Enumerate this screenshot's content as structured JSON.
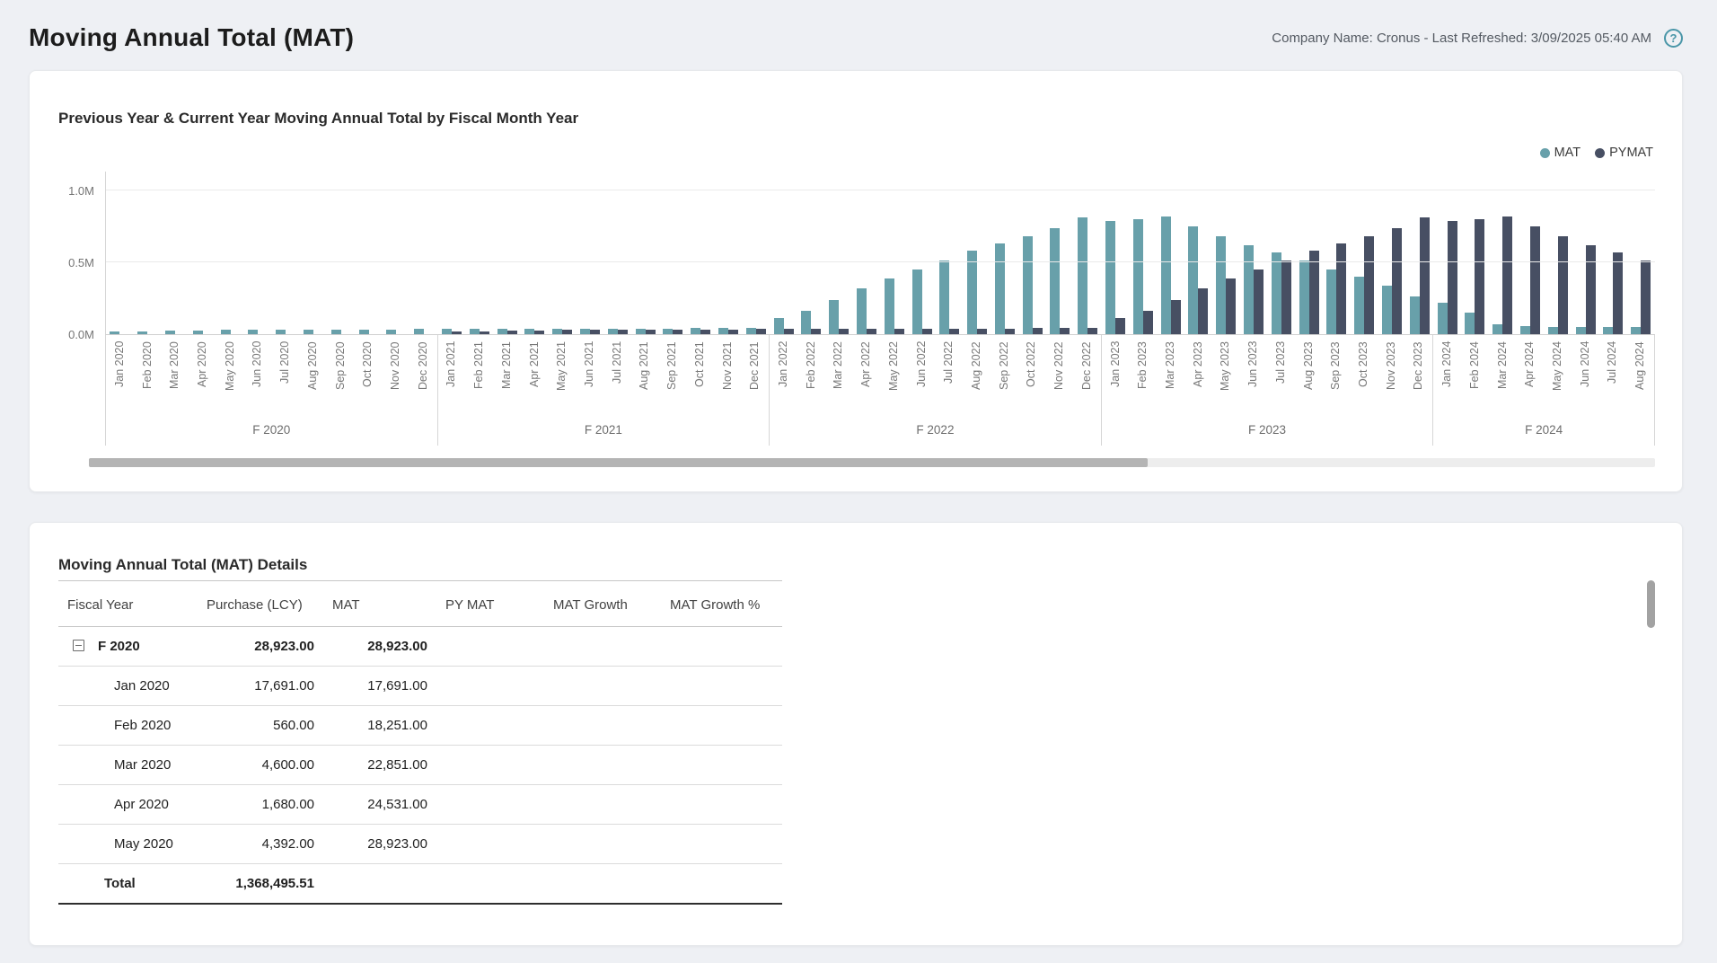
{
  "page": {
    "title": "Moving Annual Total (MAT)",
    "company_info": "Company Name: Cronus - Last Refreshed: 3/09/2025 05:40 AM"
  },
  "icons": {
    "help": "?"
  },
  "chart_card": {
    "title": "Previous Year & Current Year Moving Annual Total by Fiscal Month Year",
    "legend": [
      {
        "label": "MAT",
        "color": "#68a0aa"
      },
      {
        "label": "PYMAT",
        "color": "#474f63"
      }
    ]
  },
  "chart_data": {
    "type": "bar",
    "title": "Previous Year & Current Year Moving Annual Total by Fiscal Month Year",
    "xlabel": "Fiscal Month Year",
    "ylabel": "",
    "ylim": [
      0,
      1000000
    ],
    "y_tick_labels": [
      "0.0M",
      "0.5M",
      "1.0M"
    ],
    "grid": true,
    "legend_position": "top-right",
    "fiscal_groups": [
      {
        "label": "F 2020",
        "months": [
          "Jan 2020",
          "Feb 2020",
          "Mar 2020",
          "Apr 2020",
          "May 2020",
          "Jun 2020",
          "Jul 2020",
          "Aug 2020",
          "Sep 2020",
          "Oct 2020",
          "Nov 2020",
          "Dec 2020"
        ]
      },
      {
        "label": "F 2021",
        "months": [
          "Jan 2021",
          "Feb 2021",
          "Mar 2021",
          "Apr 2021",
          "May 2021",
          "Jun 2021",
          "Jul 2021",
          "Aug 2021",
          "Sep 2021",
          "Oct 2021",
          "Nov 2021",
          "Dec 2021"
        ]
      },
      {
        "label": "F 2022",
        "months": [
          "Jan 2022",
          "Feb 2022",
          "Mar 2022",
          "Apr 2022",
          "May 2022",
          "Jun 2022",
          "Jul 2022",
          "Aug 2022",
          "Sep 2022",
          "Oct 2022",
          "Nov 2022",
          "Dec 2022"
        ]
      },
      {
        "label": "F 2023",
        "months": [
          "Jan 2023",
          "Feb 2023",
          "Mar 2023",
          "Apr 2023",
          "May 2023",
          "Jun 2023",
          "Jul 2023",
          "Aug 2023",
          "Sep 2023",
          "Oct 2023",
          "Nov 2023",
          "Dec 2023"
        ]
      },
      {
        "label": "F 2024",
        "months": [
          "Jan 2024",
          "Feb 2024",
          "Mar 2024",
          "Apr 2024",
          "May 2024",
          "Jun 2024",
          "Jul 2024",
          "Aug 2024"
        ]
      }
    ],
    "series": [
      {
        "name": "MAT",
        "color": "#68a0aa",
        "values": [
          17691,
          18251,
          22851,
          24531,
          28923,
          30500,
          31500,
          32500,
          33000,
          33500,
          34000,
          35000,
          36000,
          36500,
          37000,
          37500,
          38000,
          38500,
          39000,
          39500,
          40000,
          41000,
          42000,
          43000,
          110000,
          165000,
          240000,
          320000,
          390000,
          450000,
          510000,
          580000,
          630000,
          680000,
          740000,
          810000,
          790000,
          800000,
          820000,
          750000,
          680000,
          620000,
          570000,
          510000,
          450000,
          400000,
          340000,
          260000,
          220000,
          150000,
          70000,
          55000,
          52000,
          50000,
          50000,
          48000
        ]
      },
      {
        "name": "PYMAT",
        "color": "#474f63",
        "values": [
          0,
          0,
          0,
          0,
          0,
          0,
          0,
          0,
          0,
          0,
          0,
          0,
          17691,
          18251,
          22851,
          24531,
          28923,
          30500,
          31500,
          32500,
          33000,
          33500,
          34000,
          35000,
          36000,
          36500,
          37000,
          37500,
          38000,
          38500,
          39000,
          39500,
          40000,
          41000,
          42000,
          43000,
          110000,
          165000,
          240000,
          320000,
          390000,
          450000,
          510000,
          580000,
          630000,
          680000,
          740000,
          810000,
          790000,
          800000,
          820000,
          750000,
          680000,
          620000,
          570000,
          510000
        ]
      }
    ]
  },
  "details_card": {
    "title": "Moving Annual Total (MAT) Details",
    "columns": [
      "Fiscal Year",
      "Purchase (LCY)",
      "MAT",
      "PY MAT",
      "MAT Growth",
      "MAT Growth %"
    ],
    "rows": [
      {
        "type": "group",
        "label": "F 2020",
        "purchase": "28,923.00",
        "mat": "28,923.00",
        "py_mat": "",
        "mat_growth": "",
        "mat_growth_pct": ""
      },
      {
        "type": "month",
        "label": "Jan 2020",
        "purchase": "17,691.00",
        "mat": "17,691.00",
        "py_mat": "",
        "mat_growth": "",
        "mat_growth_pct": ""
      },
      {
        "type": "month",
        "label": "Feb 2020",
        "purchase": "560.00",
        "mat": "18,251.00",
        "py_mat": "",
        "mat_growth": "",
        "mat_growth_pct": ""
      },
      {
        "type": "month",
        "label": "Mar 2020",
        "purchase": "4,600.00",
        "mat": "22,851.00",
        "py_mat": "",
        "mat_growth": "",
        "mat_growth_pct": ""
      },
      {
        "type": "month",
        "label": "Apr 2020",
        "purchase": "1,680.00",
        "mat": "24,531.00",
        "py_mat": "",
        "mat_growth": "",
        "mat_growth_pct": ""
      },
      {
        "type": "month",
        "label": "May 2020",
        "purchase": "4,392.00",
        "mat": "28,923.00",
        "py_mat": "",
        "mat_growth": "",
        "mat_growth_pct": ""
      }
    ],
    "total_row": {
      "type": "total",
      "label": "Total",
      "purchase": "1,368,495.51",
      "mat": "",
      "py_mat": "",
      "mat_growth": "",
      "mat_growth_pct": ""
    }
  }
}
